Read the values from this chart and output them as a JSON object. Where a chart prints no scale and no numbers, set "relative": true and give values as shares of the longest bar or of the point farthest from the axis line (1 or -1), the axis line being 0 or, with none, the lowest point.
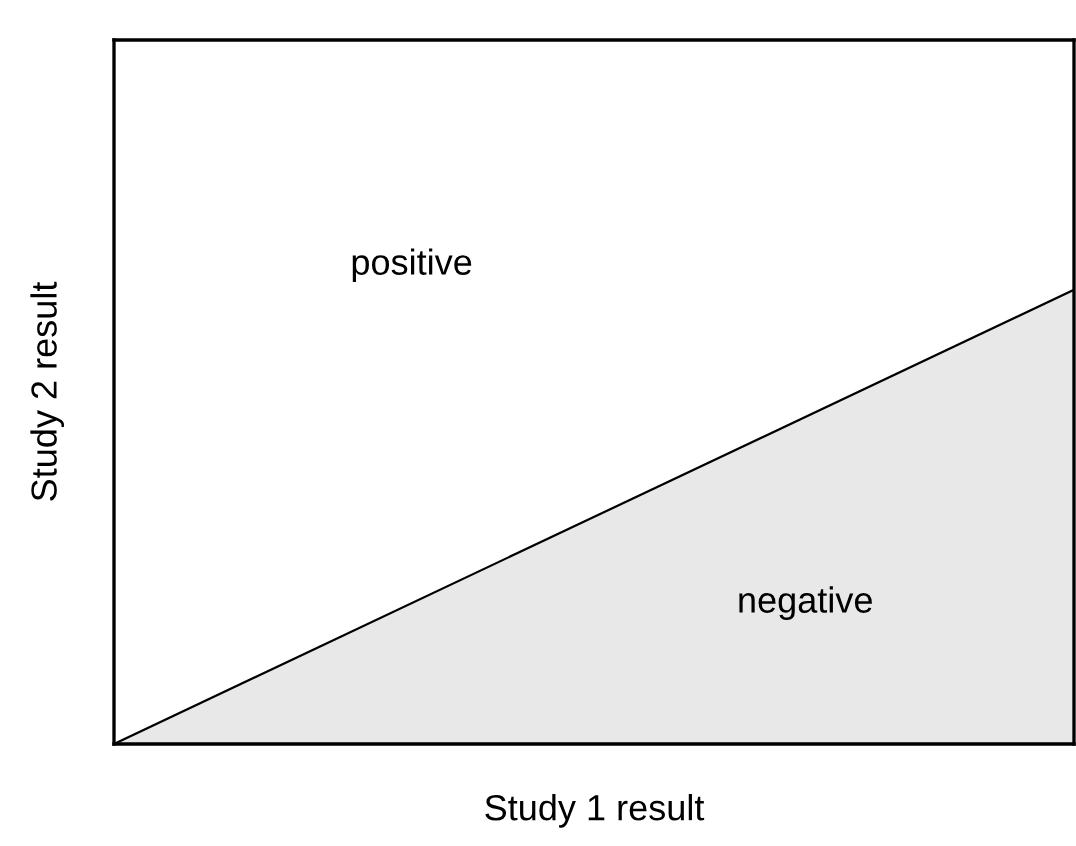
{
  "chart_data": {
    "type": "area",
    "relative": true,
    "xlabel": "Study 1 result",
    "ylabel": "Study 2 result",
    "categories": [
      null,
      null
    ],
    "series": [
      {
        "color": "#e8e8e8",
        "values": [
          0,
          1
        ]
      }
    ],
    "annotations": [
      "positive",
      "negative"
    ],
    "tick_labels": false
  }
}
